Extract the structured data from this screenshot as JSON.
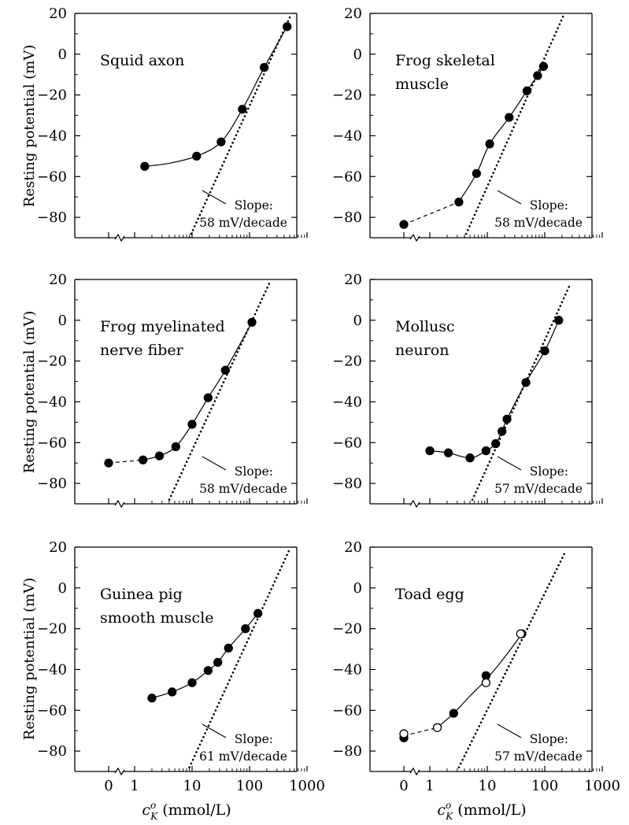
{
  "figure": {
    "ylabel": "Resting potential (mV)",
    "xlabel_prefix": "c",
    "xlabel_sup": "o",
    "xlabel_sub": "K",
    "xlabel_suffix": " (mmol/L)"
  },
  "chart_data": [
    {
      "type": "scatter",
      "title": "Squid axon",
      "title_lines": [
        "Squid axon"
      ],
      "slope_label": "Slope:",
      "slope_value": "58 mV/decade",
      "xscale": "log with zero break",
      "xticks": [
        "0",
        "1",
        "10",
        "100",
        "1000"
      ],
      "ylim": [
        -90,
        20
      ],
      "yticks": [
        20,
        0,
        -20,
        -40,
        -60,
        -80
      ],
      "series": [
        {
          "x": [
            1.5,
            12,
            32,
            75,
            180,
            450
          ],
          "y": [
            -55,
            -50,
            -43,
            -27,
            -6.5,
            13.5
          ]
        }
      ],
      "fit_line": {
        "x": [
          1.5,
          4,
          12,
          32,
          75,
          180,
          450
        ],
        "y": [
          -55,
          -53.5,
          -50,
          -43,
          -27,
          -6.5,
          13.5
        ]
      },
      "asymptote": {
        "x0": 9,
        "y0": -90,
        "x1": 500,
        "y1": 18
      }
    },
    {
      "type": "scatter",
      "title": "Frog skeletal muscle",
      "title_lines": [
        "Frog skeletal",
        "muscle"
      ],
      "slope_label": "Slope:",
      "slope_value": "58 mV/decade",
      "xscale": "log with zero break",
      "xticks": [
        "0",
        "1",
        "10",
        "100",
        "1000"
      ],
      "ylim": [
        -90,
        20
      ],
      "yticks": [
        20,
        0,
        -20,
        -40,
        -60,
        -80
      ],
      "series": [
        {
          "x": [
            0,
            3.2,
            6.5,
            11,
            24,
            49,
            75,
            95
          ],
          "y": [
            -83.5,
            -72.5,
            -58.5,
            -44,
            -31,
            -18,
            -10.5,
            -6
          ]
        }
      ],
      "fit_line": {
        "x": [
          3.2,
          6.5,
          11,
          24,
          49,
          75,
          95
        ],
        "y": [
          -72.5,
          -58.5,
          -44,
          -31,
          -18,
          -10.5,
          -6
        ]
      },
      "dashed_segment": {
        "x": [
          0,
          3.2
        ],
        "y": [
          -83.5,
          -72.5
        ]
      },
      "asymptote": {
        "x0": 4,
        "y0": -90,
        "x1": 220,
        "y1": 20
      }
    },
    {
      "type": "scatter",
      "title": "Frog myelinated nerve fiber",
      "title_lines": [
        "Frog myelinated",
        "nerve fiber"
      ],
      "slope_label": "Slope:",
      "slope_value": "58 mV/decade",
      "xscale": "log with zero break",
      "xticks": [
        "0",
        "1",
        "10",
        "100",
        "1000"
      ],
      "ylim": [
        -90,
        20
      ],
      "yticks": [
        20,
        0,
        -20,
        -40,
        -60,
        -80
      ],
      "series": [
        {
          "x": [
            0,
            1.4,
            2.7,
            5.2,
            10,
            19,
            38,
            110
          ],
          "y": [
            -70,
            -68.5,
            -66.5,
            -62,
            -51,
            -38,
            -24.5,
            -1
          ]
        }
      ],
      "fit_line": {
        "x": [
          1.4,
          2.7,
          5.2,
          10,
          19,
          38,
          110
        ],
        "y": [
          -68.5,
          -66.5,
          -62,
          -51,
          -38,
          -24.5,
          -1
        ]
      },
      "dashed_segment": {
        "x": [
          0,
          1.4
        ],
        "y": [
          -70,
          -68.5
        ]
      },
      "asymptote": {
        "x0": 4,
        "y0": -88,
        "x1": 220,
        "y1": 18
      }
    },
    {
      "type": "scatter",
      "title": "Mollusc neuron",
      "title_lines": [
        "Mollusc",
        "neuron"
      ],
      "slope_label": "Slope:",
      "slope_value": "57 mV/decade",
      "xscale": "log with zero break",
      "xticks": [
        "0",
        "1",
        "10",
        "100",
        "1000"
      ],
      "ylim": [
        -90,
        20
      ],
      "yticks": [
        20,
        0,
        -20,
        -40,
        -60,
        -80
      ],
      "series": [
        {
          "x": [
            1,
            2.1,
            5,
            9.5,
            14,
            18,
            22,
            47,
            100,
            175
          ],
          "y": [
            -64,
            -65,
            -67.5,
            -64,
            -60.5,
            -54.5,
            -48.5,
            -30.5,
            -15,
            0
          ]
        }
      ],
      "fit_line": {
        "x": [
          1,
          2.1,
          5,
          9.5,
          14,
          18,
          22,
          47,
          100,
          175
        ],
        "y": [
          -64,
          -65,
          -67.5,
          -64,
          -60.5,
          -54.5,
          -48.5,
          -30.5,
          -15,
          0
        ]
      },
      "asymptote": {
        "x0": 5.5,
        "y0": -88,
        "x1": 280,
        "y1": 18
      }
    },
    {
      "type": "scatter",
      "title": "Guinea pig smooth muscle",
      "title_lines": [
        "Guinea pig",
        "smooth muscle"
      ],
      "slope_label": "Slope:",
      "slope_value": "61 mV/decade",
      "xscale": "log with zero break",
      "xticks": [
        "0",
        "1",
        "10",
        "100",
        "1000"
      ],
      "ylim": [
        -90,
        20
      ],
      "yticks": [
        20,
        0,
        -20,
        -40,
        -60,
        -80
      ],
      "series": [
        {
          "x": [
            2,
            4.5,
            10,
            19,
            28,
            43,
            85,
            140
          ],
          "y": [
            -54,
            -51,
            -46.5,
            -40.5,
            -36.5,
            -29.5,
            -20,
            -12.5
          ]
        }
      ],
      "fit_line": {
        "x": [
          2,
          4.5,
          10,
          19,
          28,
          43,
          85,
          140
        ],
        "y": [
          -54,
          -51,
          -46.5,
          -40.5,
          -36.5,
          -29.5,
          -20,
          -12.5
        ]
      },
      "asymptote": {
        "x0": 9,
        "y0": -88,
        "x1": 480,
        "y1": 18
      }
    },
    {
      "type": "scatter",
      "title": "Toad egg",
      "title_lines": [
        "Toad egg"
      ],
      "slope_label": "Slope:",
      "slope_value": "57 mV/decade",
      "xscale": "log with zero break",
      "xticks": [
        "0",
        "1",
        "10",
        "100",
        "1000"
      ],
      "ylim": [
        -90,
        20
      ],
      "yticks": [
        20,
        0,
        -20,
        -40,
        -60,
        -80
      ],
      "series": [
        {
          "marker": "filled",
          "x": [
            0,
            2.6,
            9.5,
            40
          ],
          "y": [
            -73.5,
            -61.5,
            -43,
            -22.5
          ]
        },
        {
          "marker": "open",
          "x": [
            0,
            1.35,
            9.5,
            38
          ],
          "y": [
            -71.5,
            -68.5,
            -46.5,
            -22.5
          ]
        }
      ],
      "fit_line": {
        "x": [
          1.35,
          2.6,
          5,
          9.5,
          20,
          40
        ],
        "y": [
          -68.5,
          -61.5,
          -53,
          -45,
          -34,
          -22.5
        ]
      },
      "dashed_segment": {
        "x": [
          0,
          1.35
        ],
        "y": [
          -72.5,
          -68.5
        ]
      },
      "asymptote": {
        "x0": 3.2,
        "y0": -88,
        "x1": 230,
        "y1": 18
      }
    }
  ]
}
